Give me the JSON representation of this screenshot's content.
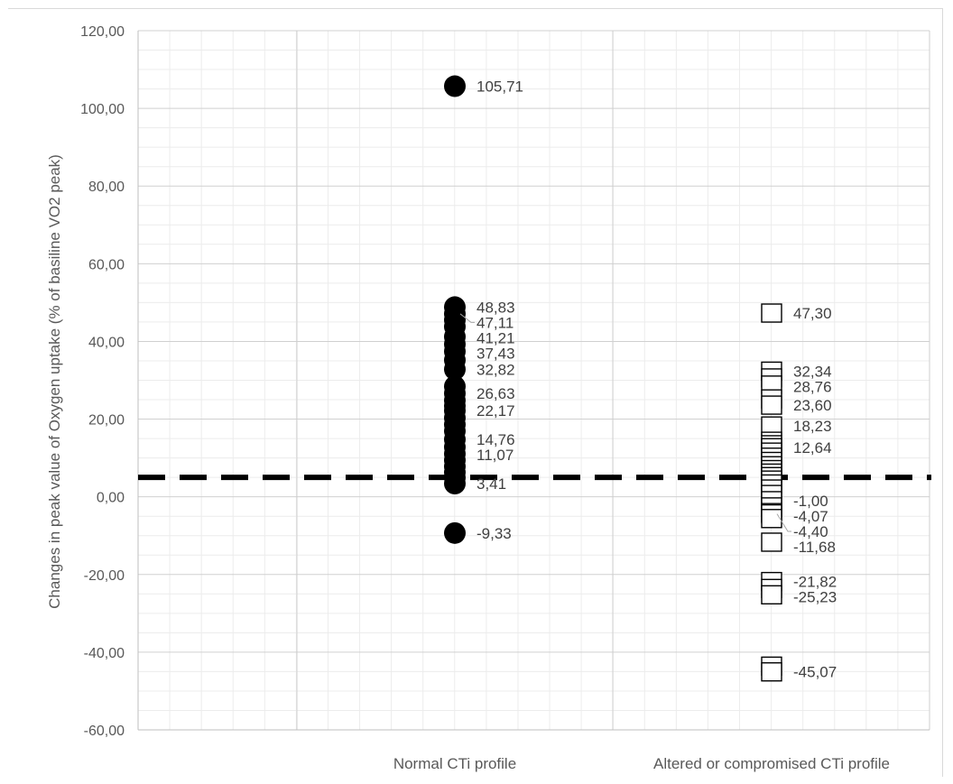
{
  "chart_data": {
    "type": "scatter",
    "ylabel": "Changes in peak value of Oxygen uptake (% of basiline VO2 peak)",
    "ylim": [
      -60,
      120
    ],
    "y_ticks": [
      {
        "value": 120,
        "label": "120,00"
      },
      {
        "value": 100,
        "label": "100,00"
      },
      {
        "value": 80,
        "label": "80,00"
      },
      {
        "value": 60,
        "label": "60,00"
      },
      {
        "value": 40,
        "label": "40,00"
      },
      {
        "value": 20,
        "label": "20,00"
      },
      {
        "value": 0,
        "label": "0,00"
      },
      {
        "value": -20,
        "label": "-20,00"
      },
      {
        "value": -40,
        "label": "-40,00"
      },
      {
        "value": -60,
        "label": "-60,00"
      }
    ],
    "categories": [
      "Normal CTi profile",
      "Altered or compromised CTi profile"
    ],
    "grid": true,
    "reference_line": {
      "value": 5,
      "style": "dashed",
      "color": "#000000"
    },
    "series": [
      {
        "category": "Normal CTi profile",
        "marker": "circle",
        "color": "#000000",
        "points": [
          {
            "y": 105.71,
            "label": "105,71"
          },
          {
            "y": 48.83,
            "label": "48,83"
          },
          {
            "y": 47.11,
            "label": "47,11"
          },
          {
            "y": 45.5
          },
          {
            "y": 43.8
          },
          {
            "y": 41.21,
            "label": "41,21"
          },
          {
            "y": 39.3
          },
          {
            "y": 37.43,
            "label": "37,43"
          },
          {
            "y": 35.2
          },
          {
            "y": 32.82,
            "label": "32,82"
          },
          {
            "y": 28.4
          },
          {
            "y": 26.63,
            "label": "26,63"
          },
          {
            "y": 24.8
          },
          {
            "y": 23.4
          },
          {
            "y": 22.17,
            "label": "22,17"
          },
          {
            "y": 20.3
          },
          {
            "y": 18.6
          },
          {
            "y": 16.9
          },
          {
            "y": 14.76,
            "label": "14,76"
          },
          {
            "y": 12.8
          },
          {
            "y": 11.07,
            "label": "11,07"
          },
          {
            "y": 9.4
          },
          {
            "y": 7.8
          },
          {
            "y": 6.3
          },
          {
            "y": 4.9
          },
          {
            "y": 3.41,
            "label": "3,41"
          },
          {
            "y": -9.33,
            "label": "-9,33"
          }
        ]
      },
      {
        "category": "Altered or compromised CTi profile",
        "marker": "square",
        "color": "#000000",
        "points": [
          {
            "y": 47.3,
            "label": "47,30"
          },
          {
            "y": 32.34,
            "label": "32,34"
          },
          {
            "y": 30.6
          },
          {
            "y": 28.76,
            "label": "28,76"
          },
          {
            "y": 25.2
          },
          {
            "y": 23.6,
            "label": "23,60"
          },
          {
            "y": 18.23,
            "label": "18,23"
          },
          {
            "y": 14.3
          },
          {
            "y": 13.4
          },
          {
            "y": 12.64,
            "label": "12,64"
          },
          {
            "y": 11.5
          },
          {
            "y": 10.2
          },
          {
            "y": 9.1
          },
          {
            "y": 8.0
          },
          {
            "y": 7.0
          },
          {
            "y": 6.1
          },
          {
            "y": 5.2
          },
          {
            "y": 4.3
          },
          {
            "y": 3.3
          },
          {
            "y": 2.0
          },
          {
            "y": 0.6
          },
          {
            "y": -1.0,
            "label": "-1,00"
          },
          {
            "y": -2.6
          },
          {
            "y": -4.07,
            "label": "-4,07"
          },
          {
            "y": -4.4,
            "label": "-4,40"
          },
          {
            "y": -5.6
          },
          {
            "y": -11.68,
            "label": "-11,68"
          },
          {
            "y": -21.82,
            "label": "-21,82"
          },
          {
            "y": -23.6
          },
          {
            "y": -25.23,
            "label": "-25,23"
          },
          {
            "y": -43.6
          },
          {
            "y": -45.07,
            "label": "-45,07"
          }
        ]
      }
    ]
  }
}
